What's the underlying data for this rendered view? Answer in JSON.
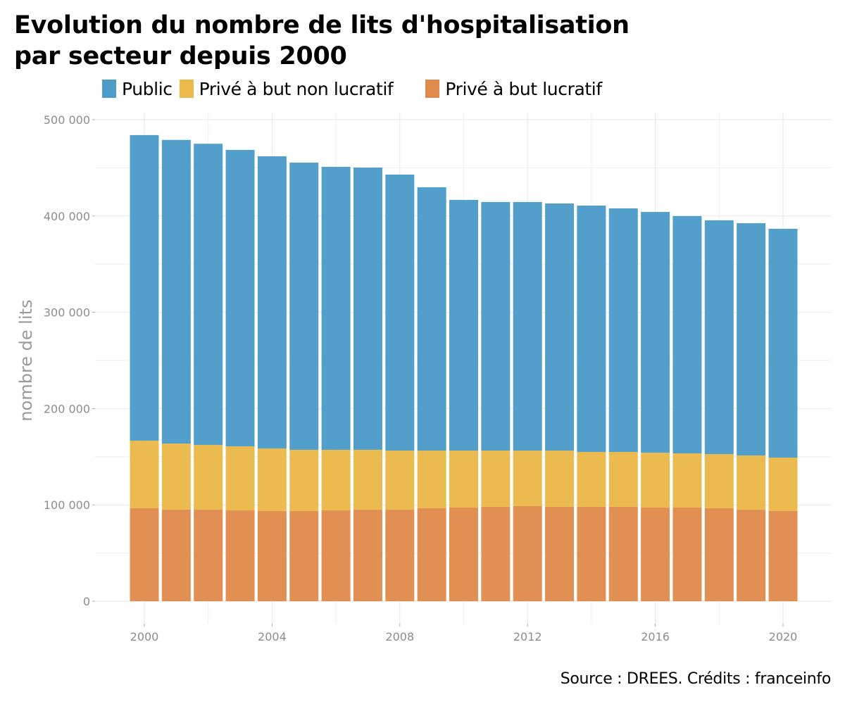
{
  "chart_data": {
    "type": "bar",
    "stacked": true,
    "title": "Evolution du nombre de lits d'hospitalisation par secteur depuis 2000",
    "title_lines": [
      "Evolution du nombre de lits d'hospitalisation",
      "par secteur depuis 2000"
    ],
    "xlabel": "",
    "ylabel": "nombre de lits",
    "ylim": [
      0,
      500000
    ],
    "yticks": [
      0,
      100000,
      200000,
      300000,
      400000,
      500000
    ],
    "ytick_labels": [
      "0",
      "100 000",
      "200 000",
      "300 000",
      "400 000",
      "500 000"
    ],
    "xlim": [
      1999,
      2021
    ],
    "xticks": [
      2000,
      2004,
      2008,
      2012,
      2016,
      2020
    ],
    "xtick_labels": [
      "2000",
      "2004",
      "2008",
      "2012",
      "2016",
      "2020"
    ],
    "grid": true,
    "legend_position": "top",
    "categories": [
      2000,
      2001,
      2002,
      2003,
      2004,
      2005,
      2006,
      2007,
      2008,
      2009,
      2010,
      2011,
      2012,
      2013,
      2014,
      2015,
      2016,
      2017,
      2018,
      2019,
      2020
    ],
    "series": [
      {
        "name": "Privé à but lucratif",
        "color": "#e08b4c",
        "values": [
          96500,
          95000,
          95000,
          94300,
          93600,
          93600,
          94300,
          95000,
          95000,
          96500,
          97200,
          98000,
          98700,
          98000,
          98000,
          98000,
          97200,
          97200,
          96500,
          95000,
          93600
        ]
      },
      {
        "name": "Privé à but non lucratif",
        "color": "#ebb94a",
        "values": [
          70200,
          68700,
          67300,
          66500,
          65000,
          63600,
          62900,
          62200,
          61400,
          59900,
          59200,
          58400,
          57700,
          58400,
          57000,
          57000,
          57000,
          56300,
          56300,
          56300,
          55500
        ]
      },
      {
        "name": "Public",
        "color": "#4b9cc8",
        "values": [
          317300,
          315300,
          312700,
          307800,
          303400,
          298200,
          293800,
          293100,
          286600,
          273400,
          260300,
          258100,
          258100,
          256600,
          255800,
          252900,
          250000,
          246400,
          242700,
          241200,
          237600
        ]
      }
    ],
    "totals": [
      484000,
      479000,
      475000,
      468600,
      462000,
      455400,
      451000,
      450300,
      443000,
      429800,
      416700,
      414500,
      414500,
      413000,
      410800,
      407900,
      404200,
      399900,
      395500,
      392500,
      386700
    ],
    "source": "Source : DREES. Crédits : franceinfo"
  },
  "legend": [
    {
      "label": "Public",
      "color": "#4b9cc8"
    },
    {
      "label": "Privé à but non lucratif",
      "color": "#ebb94a"
    },
    {
      "label": "Privé à but lucratif",
      "color": "#e08b4c"
    }
  ]
}
